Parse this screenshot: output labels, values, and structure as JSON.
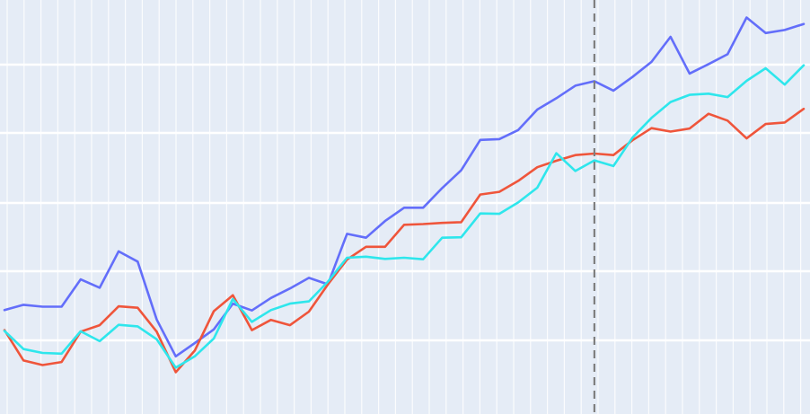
{
  "chart_data": {
    "type": "line",
    "grid": true,
    "background_color": "#e5ecf6",
    "grid_color": "#ffffff",
    "x": [
      0,
      1,
      2,
      3,
      4,
      5,
      6,
      7,
      8,
      9,
      10,
      11,
      12,
      13,
      14,
      15,
      16,
      17,
      18,
      19,
      20,
      21,
      22,
      23,
      24,
      25,
      26,
      27,
      28,
      29,
      30,
      31,
      32,
      33,
      34,
      35,
      36,
      37,
      38,
      39,
      40,
      41,
      42
    ],
    "xlim": [
      0,
      42
    ],
    "ylim": [
      0,
      100
    ],
    "vline_x": 31,
    "vline_color": "#7f7f7f",
    "series": [
      {
        "color": "#636efa",
        "values": [
          21.5,
          22.9,
          22.4,
          22.4,
          29.6,
          27.4,
          37.0,
          34.3,
          19.0,
          9.3,
          12.8,
          16.4,
          23.2,
          21.4,
          24.7,
          27.2,
          30.0,
          28.3,
          41.6,
          40.6,
          45.0,
          48.5,
          48.5,
          53.7,
          58.4,
          66.4,
          66.6,
          69.0,
          74.4,
          77.4,
          80.7,
          81.9,
          79.4,
          83.0,
          87.0,
          93.6,
          83.9,
          86.4,
          89.0,
          98.7,
          94.6,
          95.4,
          97.0
        ]
      },
      {
        "color": "#00cc96",
        "values": [
          16.2,
          8.2,
          7.0,
          7.8,
          15.8,
          17.5,
          22.5,
          22.1,
          15.8,
          5.1,
          10.8,
          21.2,
          25.4,
          16.2,
          18.9,
          17.5,
          21.1,
          28.3,
          34.8,
          38.2,
          38.2,
          44.0,
          44.2,
          44.5,
          44.7,
          52.0,
          52.7,
          55.6,
          59.2,
          60.9,
          62.4,
          62.8,
          62.4,
          66.3,
          69.5,
          68.6,
          69.4,
          73.3,
          71.5,
          66.8,
          70.6,
          71.0,
          74.6
        ],
        "color_override": "#ef553b"
      },
      {
        "color": "#00e5ee",
        "values": [
          16.0,
          11.2,
          10.2,
          10.0,
          15.9,
          13.3,
          17.6,
          17.2,
          13.8,
          6.3,
          9.3,
          14.0,
          24.4,
          18.4,
          21.5,
          23.2,
          23.8,
          29.0,
          35.3,
          35.6,
          35.0,
          35.3,
          34.9,
          40.6,
          40.7,
          47.0,
          46.9,
          49.9,
          53.8,
          62.9,
          58.2,
          61.0,
          59.5,
          67.0,
          72.2,
          76.4,
          78.3,
          78.6,
          77.7,
          82.0,
          85.3,
          81.0,
          86.1
        ]
      }
    ]
  }
}
